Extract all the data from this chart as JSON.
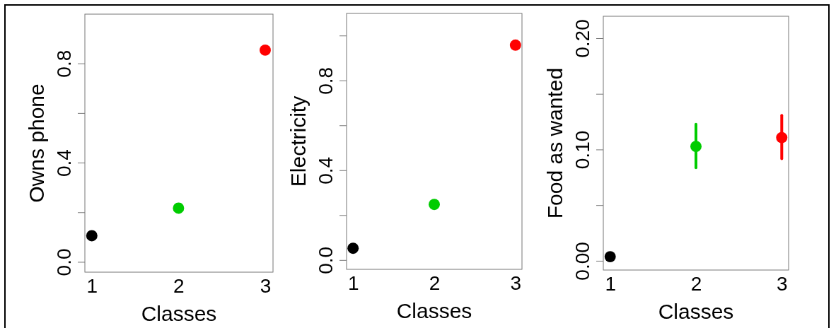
{
  "chart_data": [
    {
      "type": "scatter",
      "xlabel": "Classes",
      "ylabel": "Owns phone",
      "x": [
        1,
        2,
        3
      ],
      "values": [
        0.107,
        0.218,
        0.855
      ],
      "colors": [
        "#000000",
        "#00cc00",
        "#ff0000"
      ],
      "marker": "circle",
      "xlim": [
        0.92,
        3.09
      ],
      "xticks": [
        1,
        2,
        3
      ],
      "ylim": [
        -0.04,
        1.0
      ],
      "yticks": [
        {
          "value": 0,
          "label": "0.0"
        },
        {
          "value": 0.2,
          "label": null
        },
        {
          "value": 0.4,
          "label": "0.4"
        },
        {
          "value": 0.6,
          "label": null
        },
        {
          "value": 0.8,
          "label": "0.8"
        }
      ],
      "grid": false,
      "legend": false
    },
    {
      "type": "scatter",
      "xlabel": "Classes",
      "ylabel": "Electricity",
      "x": [
        1,
        2,
        3
      ],
      "values": [
        0.054,
        0.249,
        0.959
      ],
      "colors": [
        "#000000",
        "#00cc00",
        "#ff0000"
      ],
      "marker": "circle",
      "xlim": [
        0.92,
        3.08
      ],
      "xticks": [
        1,
        2,
        3
      ],
      "ylim": [
        -0.04,
        1.1
      ],
      "yticks": [
        {
          "value": 0,
          "label": "0.0"
        },
        {
          "value": 0.2,
          "label": null
        },
        {
          "value": 0.4,
          "label": "0.4"
        },
        {
          "value": 0.6,
          "label": null
        },
        {
          "value": 0.8,
          "label": "0.8"
        },
        {
          "value": 1.0,
          "label": null
        }
      ],
      "grid": false,
      "legend": false
    },
    {
      "type": "scatter",
      "xlabel": "Classes",
      "ylabel": "Food as wanted",
      "x": [
        1,
        2,
        3
      ],
      "values": [
        0.004,
        0.103,
        0.111
      ],
      "errors": [
        null,
        [
          0.084,
          0.123
        ],
        [
          0.092,
          0.131
        ]
      ],
      "colors": [
        "#000000",
        "#00cc00",
        "#ff0000"
      ],
      "marker": "circle",
      "xlim": [
        0.92,
        3.08
      ],
      "xticks": [
        1,
        2,
        3
      ],
      "ylim": [
        -0.008,
        0.22
      ],
      "yticks": [
        {
          "value": 0,
          "label": "0.00"
        },
        {
          "value": 0.05,
          "label": null
        },
        {
          "value": 0.1,
          "label": "0.10"
        },
        {
          "value": 0.15,
          "label": null
        },
        {
          "value": 0.2,
          "label": "0.20"
        }
      ],
      "grid": false,
      "legend": false
    }
  ]
}
